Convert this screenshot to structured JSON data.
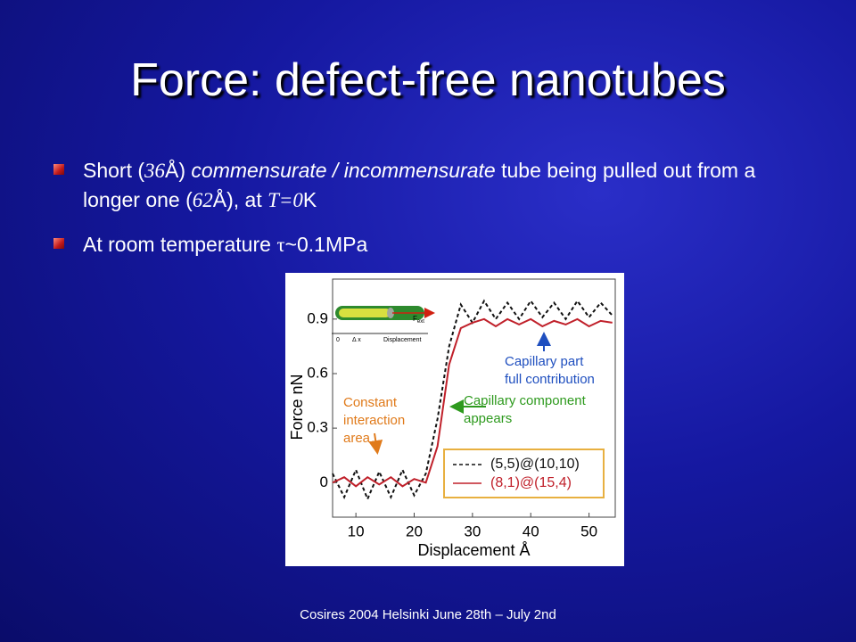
{
  "slide": {
    "title": "Force: defect-free nanotubes",
    "bullets": [
      [
        "Short (",
        "36",
        "Å) ",
        "commensurate / incommensurate",
        " tube being pulled out from a longer one (",
        "62",
        "Å), at ",
        "T=0",
        "K"
      ],
      [
        "At room temperature ",
        "τ",
        "~0.1MPa"
      ]
    ],
    "footer": "Cosires 2004 Helsinki June 28th – July 2nd"
  },
  "chart_data": {
    "type": "line",
    "xlabel": "Displacement Å",
    "ylabel": "Force nN",
    "x": [
      6,
      8,
      10,
      12,
      14,
      16,
      18,
      20,
      22,
      24,
      26,
      28,
      30,
      32,
      34,
      36,
      38,
      40,
      42,
      44,
      46,
      48,
      50,
      52,
      54
    ],
    "series": [
      {
        "name": "(5,5)@(10,10)",
        "color": "#111111",
        "style": "dashed",
        "values": [
          0.05,
          -0.08,
          0.07,
          -0.09,
          0.06,
          -0.08,
          0.07,
          -0.07,
          0.05,
          0.35,
          0.75,
          0.98,
          0.88,
          1.0,
          0.9,
          0.99,
          0.9,
          1.0,
          0.91,
          0.99,
          0.9,
          1.0,
          0.91,
          0.99,
          0.92
        ]
      },
      {
        "name": "(8,1)@(15,4)",
        "color": "#c0202a",
        "style": "solid",
        "values": [
          0.0,
          0.03,
          -0.02,
          0.03,
          -0.01,
          0.03,
          -0.02,
          0.02,
          0.0,
          0.2,
          0.65,
          0.85,
          0.88,
          0.9,
          0.86,
          0.9,
          0.87,
          0.9,
          0.86,
          0.89,
          0.87,
          0.9,
          0.86,
          0.89,
          0.88
        ]
      }
    ],
    "xlim": [
      6,
      54.5
    ],
    "ylim": [
      -0.19,
      1.12
    ],
    "xticks": [
      10,
      20,
      30,
      40,
      50
    ],
    "yticks": [
      0,
      0.3,
      0.6,
      0.9
    ],
    "annotations": [
      {
        "lines": [
          "Constant",
          "interaction",
          "area"
        ],
        "color": "#e07a1a"
      },
      {
        "lines": [
          "Capillary component",
          "appears"
        ],
        "color": "#2e9a1e"
      },
      {
        "lines": [
          "Capillary part",
          "full contribution"
        ],
        "color": "#1f4fbf"
      }
    ],
    "inset": {
      "labels": [
        "0",
        "Δ x",
        "Displacement"
      ],
      "force": "F",
      "force_sub": "ext"
    }
  }
}
